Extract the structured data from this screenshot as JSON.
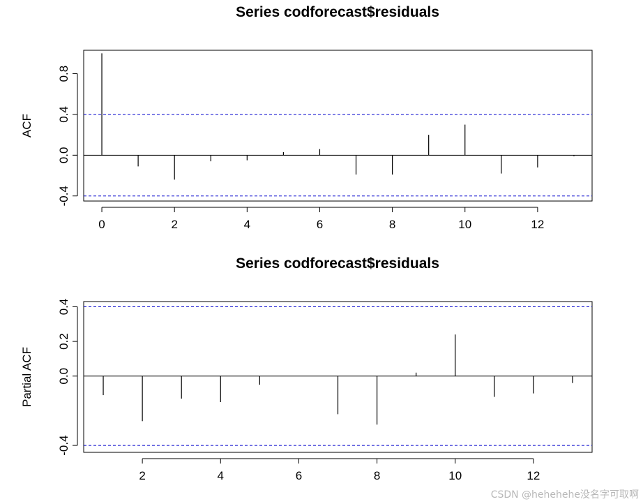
{
  "watermark": "CSDN @hehehehe没名字可取啊",
  "colors": {
    "bars": "#000000",
    "ci_line": "#0000cc",
    "frame": "#000000"
  },
  "chart_data": [
    {
      "type": "bar",
      "id": "acf",
      "title": "Series  codforecast$residuals",
      "xlabel": "",
      "ylabel": "ACF",
      "xlim": [
        -0.5,
        13.5
      ],
      "ylim": [
        -0.45,
        1.03
      ],
      "xticks": [
        0,
        2,
        4,
        6,
        8,
        10,
        12
      ],
      "yticks": [
        -0.4,
        0.0,
        0.4,
        0.8
      ],
      "ytick_labels": [
        "-0.4",
        "0.0",
        "0.4",
        "0.8"
      ],
      "ci": [
        0.4,
        -0.4
      ],
      "lags": [
        0,
        1,
        2,
        3,
        4,
        5,
        6,
        7,
        8,
        9,
        10,
        11,
        12,
        13
      ],
      "values": [
        1.0,
        -0.11,
        -0.24,
        -0.06,
        -0.05,
        0.03,
        0.06,
        -0.19,
        -0.19,
        0.2,
        0.3,
        -0.18,
        -0.12,
        -0.01
      ],
      "grid": false,
      "legend": "none"
    },
    {
      "type": "bar",
      "id": "pacf",
      "title": "Series  codforecast$residuals",
      "xlabel": "",
      "ylabel": "Partial ACF",
      "xlim": [
        0.5,
        13.5
      ],
      "ylim": [
        -0.44,
        0.43
      ],
      "xticks": [
        2,
        4,
        6,
        8,
        10,
        12
      ],
      "yticks": [
        -0.4,
        0.0,
        0.2,
        0.4
      ],
      "ytick_labels": [
        "-0.4",
        "0.0",
        "0.2",
        "0.4"
      ],
      "ci": [
        0.4,
        -0.4
      ],
      "lags": [
        1,
        2,
        3,
        4,
        5,
        6,
        7,
        8,
        9,
        10,
        11,
        12,
        13
      ],
      "values": [
        -0.11,
        -0.26,
        -0.13,
        -0.15,
        -0.05,
        0.0,
        -0.22,
        -0.28,
        0.02,
        0.24,
        -0.12,
        -0.1,
        -0.04
      ],
      "grid": false,
      "legend": "none"
    }
  ]
}
